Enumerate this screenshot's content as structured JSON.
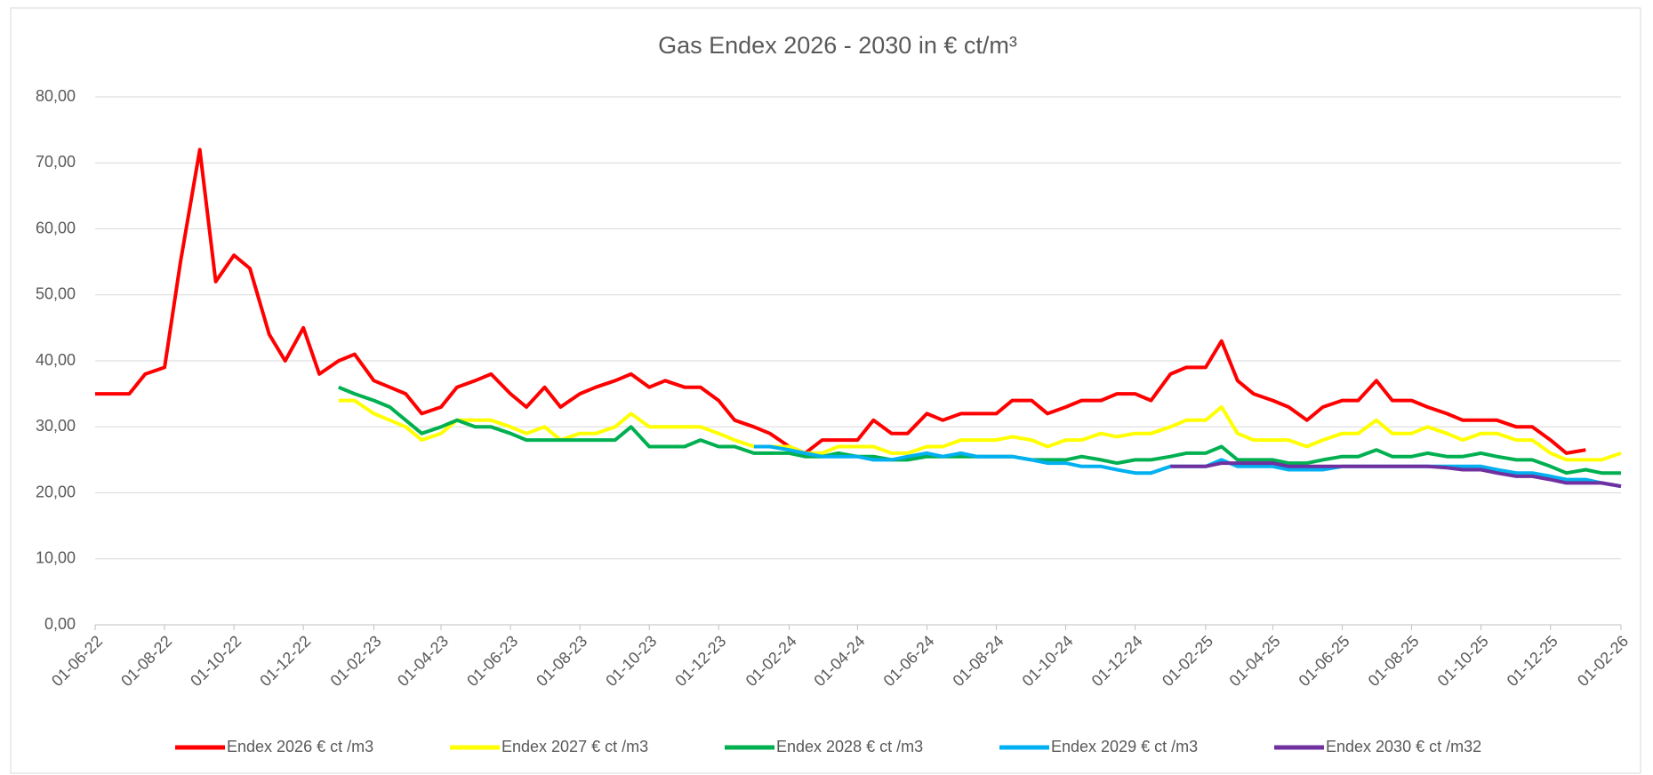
{
  "chart_data": {
    "type": "line",
    "title": "Gas Endex 2026 - 2030 in € ct/m³",
    "x": [
      "2022-06-01",
      "2022-06-15",
      "2022-07-01",
      "2022-07-15",
      "2022-08-01",
      "2022-08-15",
      "2022-09-01",
      "2022-09-15",
      "2022-10-01",
      "2022-10-15",
      "2022-11-01",
      "2022-11-15",
      "2022-12-01",
      "2022-12-15",
      "2023-01-01",
      "2023-01-15",
      "2023-02-01",
      "2023-02-15",
      "2023-03-01",
      "2023-03-15",
      "2023-04-01",
      "2023-04-15",
      "2023-05-01",
      "2023-05-15",
      "2023-06-01",
      "2023-06-15",
      "2023-07-01",
      "2023-07-15",
      "2023-08-01",
      "2023-08-15",
      "2023-09-01",
      "2023-09-15",
      "2023-10-01",
      "2023-10-15",
      "2023-11-01",
      "2023-11-15",
      "2023-12-01",
      "2023-12-15",
      "2024-01-01",
      "2024-01-15",
      "2024-02-01",
      "2024-02-15",
      "2024-03-01",
      "2024-03-15",
      "2024-04-01",
      "2024-04-15",
      "2024-05-01",
      "2024-05-15",
      "2024-06-01",
      "2024-06-15",
      "2024-07-01",
      "2024-07-15",
      "2024-08-01",
      "2024-08-15",
      "2024-09-01",
      "2024-09-15",
      "2024-10-01",
      "2024-10-15",
      "2024-11-01",
      "2024-11-15",
      "2024-12-01",
      "2024-12-15",
      "2025-01-01",
      "2025-01-15",
      "2025-02-01",
      "2025-02-15",
      "2025-03-01",
      "2025-03-15",
      "2025-04-01",
      "2025-04-15",
      "2025-05-01",
      "2025-05-15",
      "2025-06-01",
      "2025-06-15",
      "2025-07-01",
      "2025-07-15",
      "2025-08-01",
      "2025-08-15",
      "2025-09-01",
      "2025-09-15",
      "2025-10-01",
      "2025-10-15",
      "2025-11-01",
      "2025-11-15",
      "2025-12-01",
      "2025-12-15",
      "2026-01-01",
      "2026-01-15",
      "2026-02-01"
    ],
    "series": [
      {
        "name": "Endex 2026 € ct /m3",
        "color": "#ff0000",
        "values": [
          35,
          35,
          35,
          38,
          39,
          55,
          72,
          52,
          56,
          54,
          44,
          40,
          45,
          38,
          40,
          41,
          37,
          36,
          35,
          32,
          33,
          36,
          37,
          38,
          35,
          33,
          36,
          33,
          35,
          36,
          37,
          38,
          36,
          37,
          36,
          36,
          34,
          31,
          30,
          29,
          27,
          26,
          28,
          28,
          28,
          31,
          29,
          29,
          32,
          31,
          32,
          32,
          32,
          34,
          34,
          32,
          33,
          34,
          34,
          35,
          35,
          34,
          38,
          39,
          39,
          43,
          37,
          35,
          34,
          33,
          31,
          33,
          34,
          34,
          37,
          34,
          34,
          33,
          32,
          31,
          31,
          31,
          30,
          30,
          28,
          26,
          26.5,
          null,
          null
        ]
      },
      {
        "name": "Endex 2027 € ct /m3",
        "color": "#ffff00",
        "values": [
          null,
          null,
          null,
          null,
          null,
          null,
          null,
          null,
          null,
          null,
          null,
          null,
          null,
          null,
          34,
          34,
          32,
          31,
          30,
          28,
          29,
          31,
          31,
          31,
          30,
          29,
          30,
          28,
          29,
          29,
          30,
          32,
          30,
          30,
          30,
          30,
          29,
          28,
          27,
          27,
          27,
          26,
          26,
          27,
          27,
          27,
          26,
          26,
          27,
          27,
          28,
          28,
          28,
          28.5,
          28,
          27,
          28,
          28,
          29,
          28.5,
          29,
          29,
          30,
          31,
          31,
          33,
          29,
          28,
          28,
          28,
          27,
          28,
          29,
          29,
          31,
          29,
          29,
          30,
          29,
          28,
          29,
          29,
          28,
          28,
          26,
          25,
          25,
          25,
          26
        ]
      },
      {
        "name": "Endex 2028 € ct /m3",
        "color": "#00b050",
        "values": [
          null,
          null,
          null,
          null,
          null,
          null,
          null,
          null,
          null,
          null,
          null,
          null,
          null,
          null,
          36,
          35,
          34,
          33,
          31,
          29,
          30,
          31,
          30,
          30,
          29,
          28,
          28,
          28,
          28,
          28,
          28,
          30,
          27,
          27,
          27,
          28,
          27,
          27,
          26,
          26,
          26,
          25.5,
          25.5,
          26,
          25.5,
          25.5,
          25,
          25,
          25.5,
          25.5,
          25.5,
          25.5,
          25.5,
          25.5,
          25,
          25,
          25,
          25.5,
          25,
          24.5,
          25,
          25,
          25.5,
          26,
          26,
          27,
          25,
          25,
          25,
          24.5,
          24.5,
          25,
          25.5,
          25.5,
          26.5,
          25.5,
          25.5,
          26,
          25.5,
          25.5,
          26,
          25.5,
          25,
          25,
          24,
          23,
          23.5,
          23,
          23
        ]
      },
      {
        "name": "Endex 2029 € ct /m3",
        "color": "#00b0f0",
        "values": [
          null,
          null,
          null,
          null,
          null,
          null,
          null,
          null,
          null,
          null,
          null,
          null,
          null,
          null,
          null,
          null,
          null,
          null,
          null,
          null,
          null,
          null,
          null,
          null,
          null,
          null,
          null,
          null,
          null,
          null,
          null,
          null,
          null,
          null,
          null,
          null,
          null,
          null,
          27,
          27,
          26.5,
          26,
          25.5,
          25.5,
          25.5,
          25,
          25,
          25.5,
          26,
          25.5,
          26,
          25.5,
          25.5,
          25.5,
          25,
          24.5,
          24.5,
          24,
          24,
          23.5,
          23,
          23,
          24,
          24,
          24,
          25,
          24,
          24,
          24,
          23.5,
          23.5,
          23.5,
          24,
          24,
          24,
          24,
          24,
          24,
          24,
          24,
          24,
          23.5,
          23,
          23,
          22.5,
          22,
          22,
          21.5,
          21
        ]
      },
      {
        "name": "Endex 2030 € ct /m32",
        "color": "#7030a0",
        "values": [
          null,
          null,
          null,
          null,
          null,
          null,
          null,
          null,
          null,
          null,
          null,
          null,
          null,
          null,
          null,
          null,
          null,
          null,
          null,
          null,
          null,
          null,
          null,
          null,
          null,
          null,
          null,
          null,
          null,
          null,
          null,
          null,
          null,
          null,
          null,
          null,
          null,
          null,
          null,
          null,
          null,
          null,
          null,
          null,
          null,
          null,
          null,
          null,
          null,
          null,
          null,
          null,
          null,
          null,
          null,
          null,
          null,
          null,
          null,
          null,
          null,
          null,
          24,
          24,
          24,
          24.5,
          24.5,
          24.5,
          24.5,
          24,
          24,
          24,
          24,
          24,
          24,
          24,
          24,
          24,
          23.8,
          23.5,
          23.5,
          23,
          22.5,
          22.5,
          22,
          21.5,
          21.5,
          21.5,
          21
        ]
      }
    ],
    "xlim": [
      "2022-06-01",
      "2026-02-01"
    ],
    "xticks": [
      {
        "value": "2022-06-01",
        "label": "01-06-22"
      },
      {
        "value": "2022-08-01",
        "label": "01-08-22"
      },
      {
        "value": "2022-10-01",
        "label": "01-10-22"
      },
      {
        "value": "2022-12-01",
        "label": "01-12-22"
      },
      {
        "value": "2023-02-01",
        "label": "01-02-23"
      },
      {
        "value": "2023-04-01",
        "label": "01-04-23"
      },
      {
        "value": "2023-06-01",
        "label": "01-06-23"
      },
      {
        "value": "2023-08-01",
        "label": "01-08-23"
      },
      {
        "value": "2023-10-01",
        "label": "01-10-23"
      },
      {
        "value": "2023-12-01",
        "label": "01-12-23"
      },
      {
        "value": "2024-02-01",
        "label": "01-02-24"
      },
      {
        "value": "2024-04-01",
        "label": "01-04-24"
      },
      {
        "value": "2024-06-01",
        "label": "01-06-24"
      },
      {
        "value": "2024-08-01",
        "label": "01-08-24"
      },
      {
        "value": "2024-10-01",
        "label": "01-10-24"
      },
      {
        "value": "2024-12-01",
        "label": "01-12-24"
      },
      {
        "value": "2025-02-01",
        "label": "01-02-25"
      },
      {
        "value": "2025-04-01",
        "label": "01-04-25"
      },
      {
        "value": "2025-06-01",
        "label": "01-06-25"
      },
      {
        "value": "2025-08-01",
        "label": "01-08-25"
      },
      {
        "value": "2025-10-01",
        "label": "01-10-25"
      },
      {
        "value": "2025-12-01",
        "label": "01-12-25"
      },
      {
        "value": "2026-02-01",
        "label": "01-02-26"
      }
    ],
    "ylim": [
      0,
      80
    ],
    "yticks": [
      {
        "value": 0,
        "label": "0,00"
      },
      {
        "value": 10,
        "label": "10,00"
      },
      {
        "value": 20,
        "label": "20,00"
      },
      {
        "value": 30,
        "label": "30,00"
      },
      {
        "value": 40,
        "label": "40,00"
      },
      {
        "value": 50,
        "label": "50,00"
      },
      {
        "value": 60,
        "label": "60,00"
      },
      {
        "value": 70,
        "label": "70,00"
      },
      {
        "value": 80,
        "label": "80,00"
      }
    ],
    "grid": true,
    "legend": "bottom"
  }
}
